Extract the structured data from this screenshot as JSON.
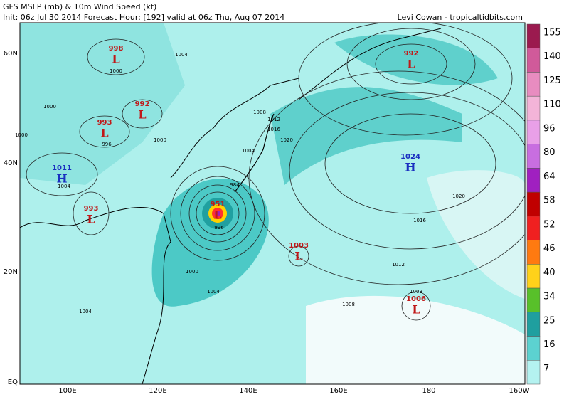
{
  "header": {
    "title": "GFS MSLP (mb) & 10m Wind Speed (kt)",
    "init": "Init: 06z Jul 30 2014 Forecast Hour: [192] valid at 06z Thu, Aug 07 2014",
    "credit": "Levi Cowan - tropicaltidbits.com"
  },
  "lat_labels": [
    "60N",
    "40N",
    "20N",
    "EQ"
  ],
  "lon_labels": [
    "100E",
    "120E",
    "140E",
    "160E",
    "180",
    "160W"
  ],
  "centers": [
    {
      "pressure": 998,
      "symbol": "L"
    },
    {
      "pressure": 992,
      "symbol": "L"
    },
    {
      "pressure": 993,
      "symbol": "L"
    },
    {
      "pressure": 1011,
      "symbol": "H"
    },
    {
      "pressure": 993,
      "symbol": "L"
    },
    {
      "pressure": 951,
      "symbol": "L"
    },
    {
      "pressure": 1003,
      "symbol": "L"
    },
    {
      "pressure": 1024,
      "symbol": "H"
    },
    {
      "pressure": 992,
      "symbol": "L"
    },
    {
      "pressure": 1006,
      "symbol": "L"
    }
  ],
  "isobar_labels": [
    "1000",
    "1004",
    "1000",
    "1000",
    "996",
    "1004",
    "1000",
    "996",
    "1004",
    "1008",
    "1012",
    "1016",
    "1020",
    "1020",
    "1016",
    "1012",
    "1008",
    "1000",
    "1004",
    "1008",
    "1004",
    "984"
  ],
  "colorbar": {
    "levels": [
      155,
      140,
      125,
      110,
      96,
      80,
      64,
      58,
      52,
      46,
      40,
      34,
      25,
      16,
      7
    ],
    "colors": [
      "#9b1a4f",
      "#d05a9a",
      "#e88cc0",
      "#f3b4d8",
      "#e9a0e8",
      "#c86ee0",
      "#a020c0",
      "#c00000",
      "#f02020",
      "#ff7a10",
      "#ffd21a",
      "#58c02a",
      "#1f9f9f",
      "#5cd2d0",
      "#b4f2f0"
    ]
  }
}
